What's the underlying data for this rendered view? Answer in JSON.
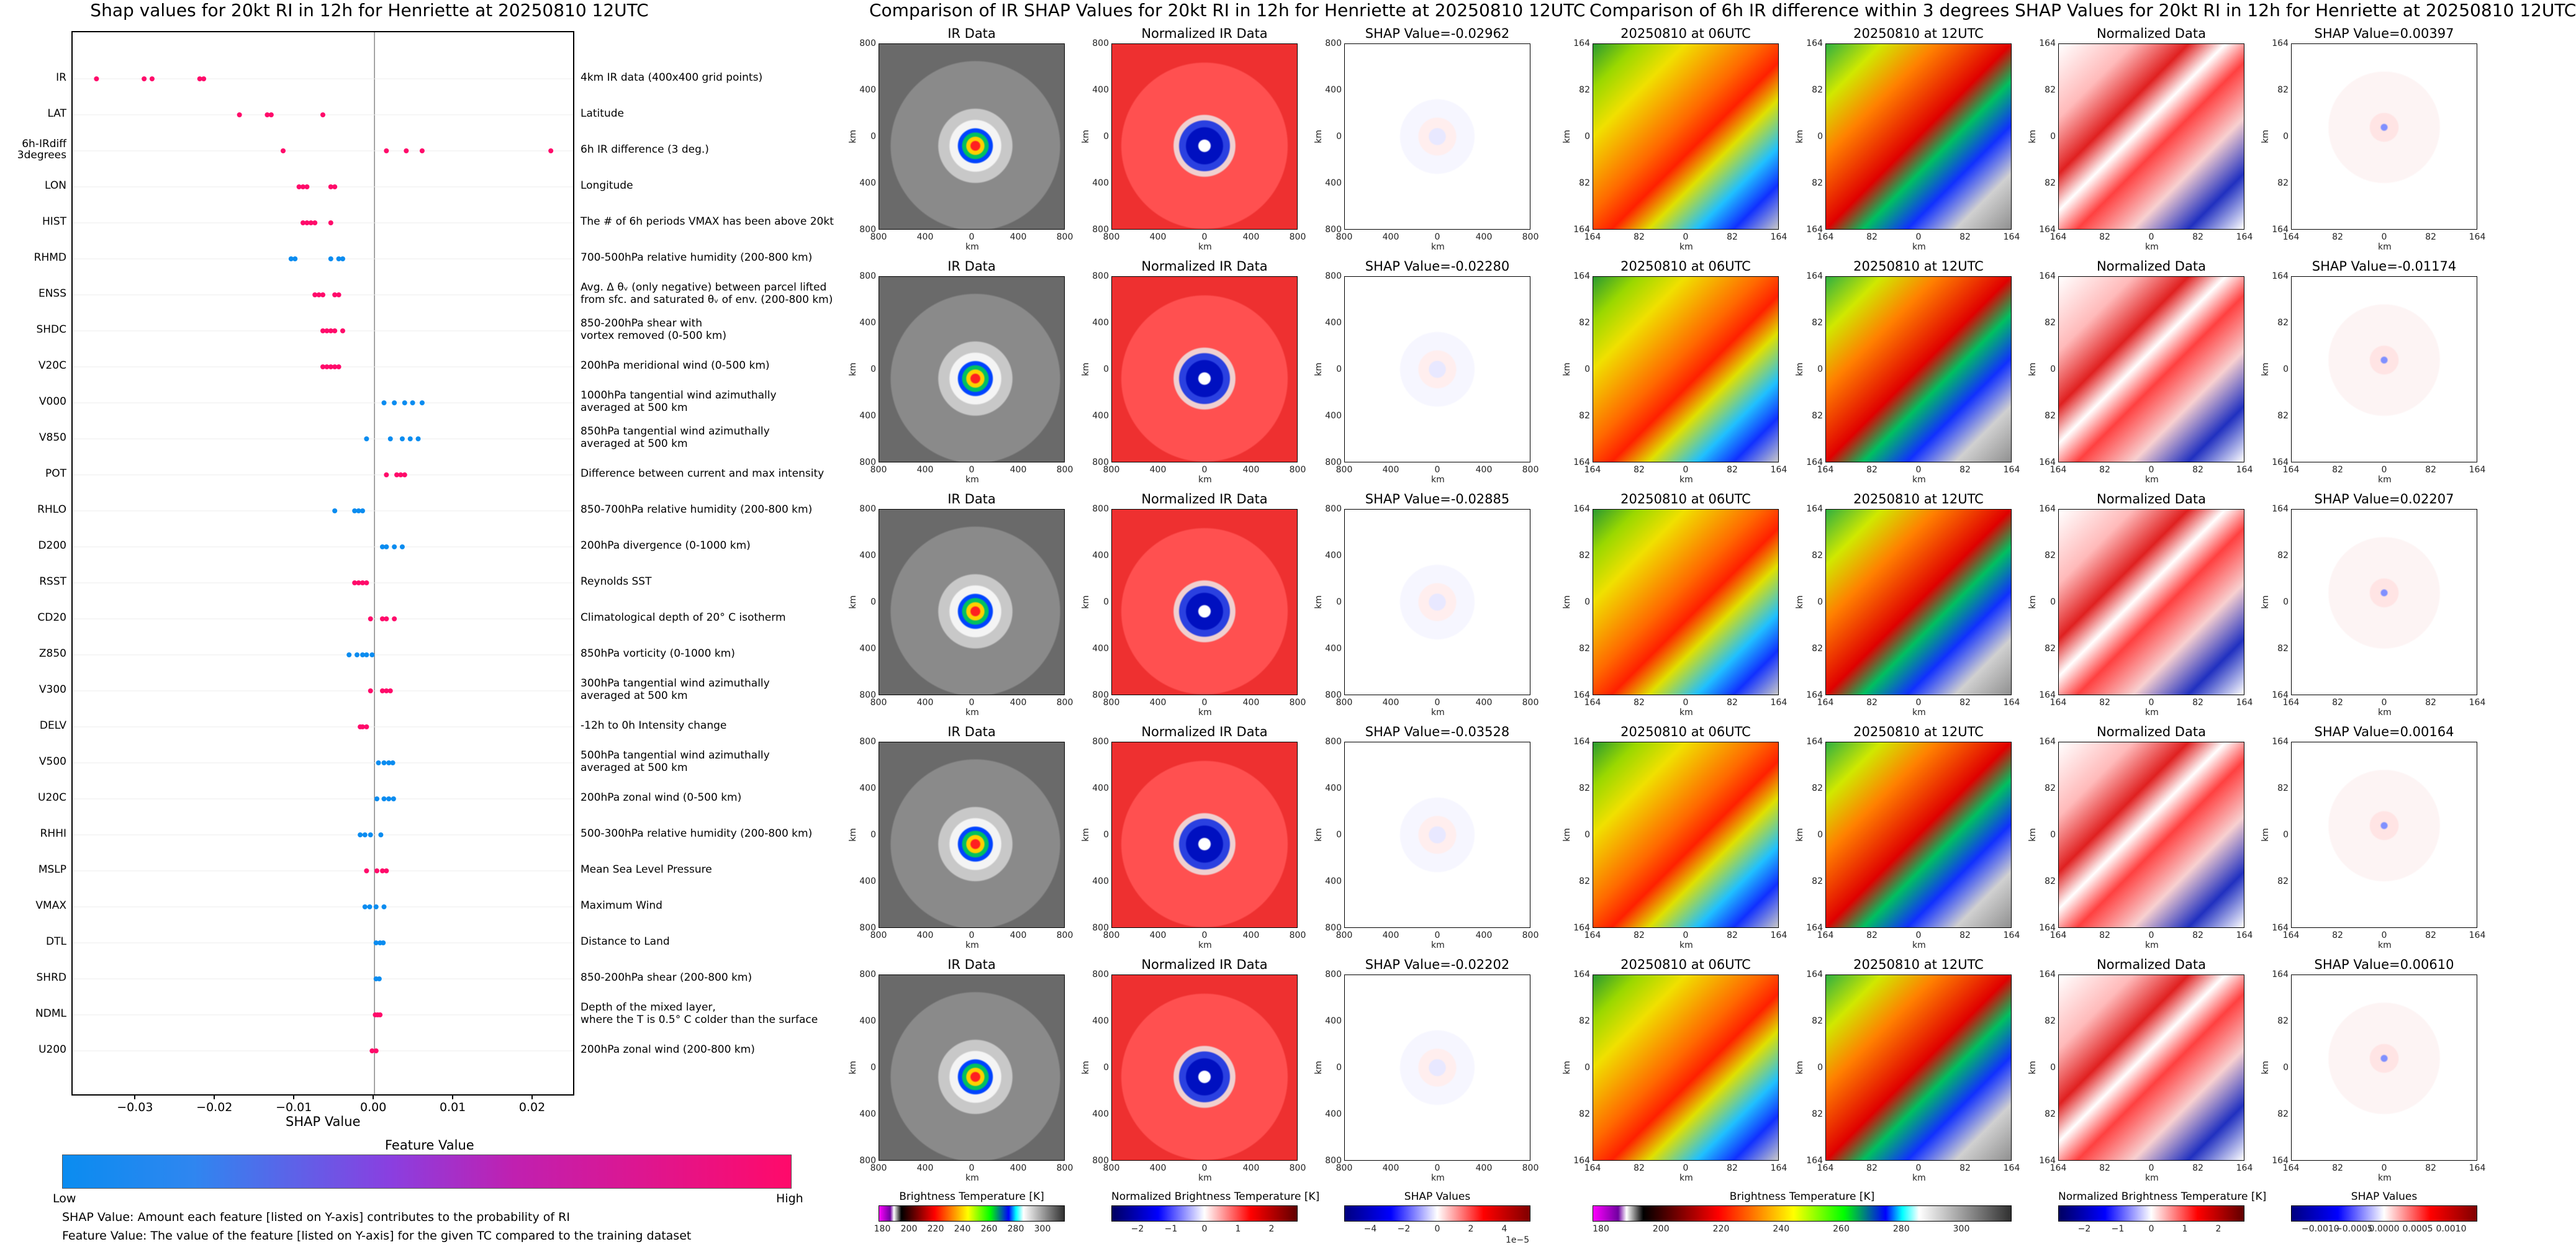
{
  "shap_panel": {
    "title": "Shap values for 20kt RI in 12h for Henriette at 20250810 12UTC",
    "xlabel": "SHAP Value",
    "colorbar_title": "Feature Value",
    "colorbar_low": "Low",
    "colorbar_high": "High",
    "note1": "SHAP Value: Amount each feature [listed on Y-axis] contributes to the probability of RI",
    "note2": "Feature Value: The value of the feature [listed on Y-axis] for the given TC compared to the training dataset",
    "xticks": [
      "−0.03",
      "−0.02",
      "−0.01",
      "0.00",
      "0.01",
      "0.02"
    ]
  },
  "chart_data": {
    "type": "scatter",
    "title": "Shap values for 20kt RI in 12h for Henriette at 20250810 12UTC",
    "xlabel": "SHAP Value",
    "xlim": [
      -0.038,
      0.025
    ],
    "color_scale": [
      "#0a8cf0",
      "#8a2be2",
      "#ff0a6a"
    ],
    "features": [
      {
        "name": "IR",
        "desc": "4km IR data (400x400 grid points)",
        "values": [
          -0.035,
          -0.029,
          -0.028,
          -0.022,
          -0.0215
        ],
        "feat": [
          1,
          1,
          1,
          1,
          1
        ]
      },
      {
        "name": "LAT",
        "desc": "Latitude",
        "values": [
          -0.017,
          -0.0135,
          -0.013,
          -0.0065
        ],
        "feat": [
          1,
          1,
          1,
          1
        ]
      },
      {
        "name": "6h-IRdiff\n3degrees",
        "desc": "6h IR difference (3 deg.)",
        "values": [
          -0.0115,
          0.0015,
          0.004,
          0.006,
          0.0222
        ],
        "feat": [
          1,
          1,
          1,
          1,
          1
        ]
      },
      {
        "name": "LON",
        "desc": "Longitude",
        "values": [
          -0.0095,
          -0.009,
          -0.0085,
          -0.0055,
          -0.005
        ],
        "feat": [
          1,
          1,
          1,
          1,
          1
        ]
      },
      {
        "name": "HIST",
        "desc": "The # of 6h periods VMAX has been above 20kt",
        "values": [
          -0.009,
          -0.0085,
          -0.008,
          -0.0075,
          -0.0055
        ],
        "feat": [
          1,
          1,
          1,
          1,
          1
        ]
      },
      {
        "name": "RHMD",
        "desc": "700-500hPa relative humidity (200-800 km)",
        "values": [
          -0.0105,
          -0.01,
          -0.0055,
          -0.0045,
          -0.004
        ],
        "feat": [
          0,
          0,
          0,
          0,
          0
        ]
      },
      {
        "name": "ENSS",
        "desc": "Avg. Δ θᵥ (only negative) between parcel lifted\nfrom sfc. and saturated θᵥ of env. (200-800 km)",
        "values": [
          -0.0075,
          -0.007,
          -0.0065,
          -0.005,
          -0.0045
        ],
        "feat": [
          1,
          1,
          1,
          1,
          1
        ]
      },
      {
        "name": "SHDC",
        "desc": "850-200hPa shear with\nvortex removed (0-500 km)",
        "values": [
          -0.0065,
          -0.006,
          -0.0055,
          -0.005,
          -0.004
        ],
        "feat": [
          1,
          1,
          1,
          1,
          1
        ]
      },
      {
        "name": "V20C",
        "desc": "200hPa meridional wind (0-500 km)",
        "values": [
          -0.0065,
          -0.006,
          -0.0055,
          -0.005,
          -0.0045
        ],
        "feat": [
          1,
          1,
          1,
          1,
          1
        ]
      },
      {
        "name": "V000",
        "desc": "1000hPa tangential wind azimuthally\naveraged at 500 km",
        "values": [
          0.0012,
          0.0025,
          0.0038,
          0.0048,
          0.006
        ],
        "feat": [
          0,
          0,
          0,
          0,
          0
        ]
      },
      {
        "name": "V850",
        "desc": "850hPa tangential wind azimuthally\naveraged at 500 km",
        "values": [
          -0.001,
          0.002,
          0.0035,
          0.0045,
          0.0055
        ],
        "feat": [
          0,
          0,
          0,
          0,
          0
        ]
      },
      {
        "name": "POT",
        "desc": "Difference between current and max intensity",
        "values": [
          0.0015,
          0.0028,
          0.0033,
          0.0038
        ],
        "feat": [
          1,
          1,
          1,
          1
        ]
      },
      {
        "name": "RHLO",
        "desc": "850-700hPa relative humidity (200-800 km)",
        "values": [
          -0.005,
          -0.0025,
          -0.002,
          -0.0015
        ],
        "feat": [
          0,
          0,
          0,
          0
        ]
      },
      {
        "name": "D200",
        "desc": "200hPa divergence (0-1000 km)",
        "values": [
          0.001,
          0.0015,
          0.0025,
          0.0035
        ],
        "feat": [
          0,
          0,
          0,
          0
        ]
      },
      {
        "name": "RSST",
        "desc": "Reynolds SST",
        "values": [
          -0.0025,
          -0.002,
          -0.0015,
          -0.001
        ],
        "feat": [
          1,
          1,
          1,
          1
        ]
      },
      {
        "name": "CD20",
        "desc": "Climatological depth of 20° C isotherm",
        "values": [
          -0.0005,
          0.001,
          0.0015,
          0.0025
        ],
        "feat": [
          1,
          1,
          1,
          1
        ]
      },
      {
        "name": "Z850",
        "desc": "850hPa vorticity (0-1000 km)",
        "values": [
          -0.0032,
          -0.0022,
          -0.0015,
          -0.001,
          -0.0003
        ],
        "feat": [
          0,
          0,
          0,
          0,
          0
        ]
      },
      {
        "name": "V300",
        "desc": "300hPa tangential wind azimuthally\naveraged at 500 km",
        "values": [
          -0.0005,
          0.001,
          0.0015,
          0.002
        ],
        "feat": [
          1,
          1,
          1,
          1
        ]
      },
      {
        "name": "DELV",
        "desc": "-12h to 0h Intensity change",
        "values": [
          -0.0018,
          -0.0015,
          -0.001
        ],
        "feat": [
          1,
          1,
          1
        ]
      },
      {
        "name": "V500",
        "desc": "500hPa tangential wind azimuthally\naveraged at 500 km",
        "values": [
          0.0005,
          0.0012,
          0.0018,
          0.0023
        ],
        "feat": [
          0,
          0,
          0,
          0
        ]
      },
      {
        "name": "U20C",
        "desc": "200hPa zonal wind (0-500 km)",
        "values": [
          0.0003,
          0.0012,
          0.0018,
          0.0024
        ],
        "feat": [
          0,
          0,
          0,
          0
        ]
      },
      {
        "name": "RHHI",
        "desc": "500-300hPa relative humidity (200-800 km)",
        "values": [
          -0.0018,
          -0.0012,
          -0.0005,
          0.0008
        ],
        "feat": [
          0,
          0,
          0,
          0
        ]
      },
      {
        "name": "MSLP",
        "desc": "Mean Sea Level Pressure",
        "values": [
          -0.001,
          0.0003,
          0.001,
          0.0015
        ],
        "feat": [
          1,
          1,
          1,
          1
        ]
      },
      {
        "name": "VMAX",
        "desc": "Maximum Wind",
        "values": [
          -0.0012,
          -0.0006,
          0.0002,
          0.0012
        ],
        "feat": [
          0,
          0,
          0,
          0
        ]
      },
      {
        "name": "DTL",
        "desc": "Distance to Land",
        "values": [
          0.0002,
          0.0007,
          0.0011
        ],
        "feat": [
          0,
          0,
          0
        ]
      },
      {
        "name": "SHRD",
        "desc": "850-200hPa shear (200-800 km)",
        "values": [
          0.0002,
          0.0006
        ],
        "feat": [
          0,
          0
        ]
      },
      {
        "name": "NDML",
        "desc": "Depth of the mixed layer,\nwhere the T is 0.5° C colder than the surface",
        "values": [
          0.0001,
          0.0004,
          0.0007
        ],
        "feat": [
          1,
          1,
          1
        ]
      },
      {
        "name": "U200",
        "desc": "200hPa zonal wind (200-800 km)",
        "values": [
          -0.0003,
          0.0002
        ],
        "feat": [
          1,
          1
        ]
      }
    ]
  },
  "ir_section": {
    "title": "Comparison of IR SHAP Values for 20kt RI in 12h for Henriette at 20250810 12UTC",
    "col_titles": [
      "IR Data",
      "Normalized IR Data"
    ],
    "shap_titles": [
      "SHAP Value=-0.02962",
      "SHAP Value=-0.02280",
      "SHAP Value=-0.02885",
      "SHAP Value=-0.03528",
      "SHAP Value=-0.02202"
    ],
    "axis_label": "km",
    "ticks_y": [
      "800",
      "400",
      "0",
      "400",
      "800"
    ],
    "ticks_x": [
      "800",
      "400",
      "0",
      "400",
      "800"
    ],
    "cbars": [
      {
        "label": "Brightness Temperature [K]",
        "ticks": [
          "180",
          "200",
          "220",
          "240",
          "260",
          "280",
          "300"
        ]
      },
      {
        "label": "Normalized Brightness Temperature [K]",
        "ticks": [
          "−2",
          "−1",
          "0",
          "1",
          "2"
        ]
      },
      {
        "label": "SHAP Values",
        "ticks": [
          "−4",
          "−2",
          "0",
          "2",
          "4"
        ],
        "scale": "1e−5"
      }
    ]
  },
  "diff_section": {
    "title": "Comparison of 6h IR difference within 3 degrees SHAP Values for 20kt RI in 12h for Henriette at 20250810 12UTC",
    "col_titles": [
      "20250810 at 06UTC",
      "20250810 at 12UTC",
      "Normalized Data"
    ],
    "shap_titles": [
      "SHAP Value=0.00397",
      "SHAP Value=-0.01174",
      "SHAP Value=0.02207",
      "SHAP Value=0.00164",
      "SHAP Value=0.00610"
    ],
    "axis_label": "km",
    "ticks_y": [
      "164",
      "82",
      "0",
      "82",
      "164"
    ],
    "ticks_x": [
      "164",
      "82",
      "0",
      "82",
      "164"
    ],
    "cbars": [
      {
        "label": "Brightness Temperature [K]",
        "ticks": [
          "180",
          "200",
          "220",
          "240",
          "260",
          "280",
          "300"
        ]
      },
      {
        "label": "Normalized Brightness Temperature [K]",
        "ticks": [
          "−2",
          "−1",
          "0",
          "1",
          "2"
        ]
      },
      {
        "label": "SHAP Values",
        "ticks": [
          "−0.0010",
          "−0.0005",
          "0.0000",
          "0.0005",
          "0.0010"
        ]
      }
    ]
  }
}
